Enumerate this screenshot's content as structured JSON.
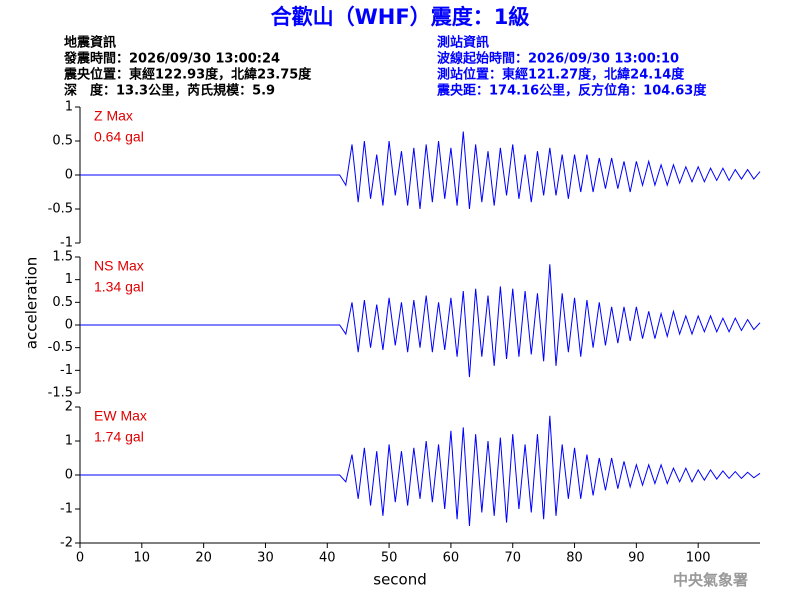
{
  "header": {
    "title": "合歡山（WHF）震度：1級",
    "left": [
      "地震資訊",
      "發震時間：2026/09/30 13:00:24",
      "震央位置：東經122.93度，北緯23.75度",
      "深　度：13.3公里，芮氏規模：5.9"
    ],
    "right": [
      "測站資訊",
      "波線起始時間：2026/09/30 13:00:10",
      "測站位置：東經121.27度，北緯24.14度",
      "震央距：174.16公里，反方位角：104.63度"
    ],
    "credit": "中央氣象署"
  },
  "chart_data": [
    {
      "type": "line",
      "label": "Z Max",
      "max_label": "0.64 gal",
      "color": "#0000ff",
      "label_color": "#e00000",
      "xlim": [
        0,
        110
      ],
      "ylim": [
        -1,
        1
      ],
      "yticks": [
        -1,
        -0.5,
        0,
        0.5,
        1
      ],
      "x": [
        0,
        42,
        43,
        44,
        45,
        46,
        47,
        48,
        49,
        50,
        51,
        52,
        53,
        54,
        55,
        56,
        57,
        58,
        59,
        60,
        61,
        62,
        63,
        64,
        65,
        66,
        67,
        68,
        69,
        70,
        71,
        72,
        73,
        74,
        75,
        76,
        77,
        78,
        79,
        80,
        81,
        82,
        83,
        84,
        85,
        86,
        87,
        88,
        89,
        90,
        91,
        92,
        93,
        94,
        95,
        96,
        97,
        98,
        99,
        100,
        101,
        102,
        103,
        104,
        105,
        106,
        107,
        108,
        109,
        110
      ],
      "values": [
        0,
        0,
        -0.15,
        0.45,
        -0.4,
        0.5,
        -0.35,
        0.3,
        -0.45,
        0.5,
        -0.3,
        0.35,
        -0.45,
        0.4,
        -0.5,
        0.45,
        -0.4,
        0.5,
        -0.35,
        0.4,
        -0.45,
        0.64,
        -0.5,
        0.45,
        -0.4,
        0.35,
        -0.45,
        0.4,
        -0.3,
        0.45,
        -0.35,
        0.3,
        -0.4,
        0.35,
        -0.3,
        0.4,
        -0.3,
        0.3,
        -0.35,
        0.3,
        -0.25,
        0.3,
        -0.25,
        0.25,
        -0.2,
        0.25,
        -0.2,
        0.2,
        -0.25,
        0.2,
        -0.15,
        0.2,
        -0.15,
        0.15,
        -0.15,
        0.15,
        -0.12,
        0.12,
        -0.1,
        0.12,
        -0.1,
        0.1,
        -0.08,
        0.1,
        -0.08,
        0.08,
        -0.06,
        0.08,
        -0.06,
        0.05
      ]
    },
    {
      "type": "line",
      "label": "NS Max",
      "max_label": "1.34 gal",
      "color": "#0000ff",
      "label_color": "#e00000",
      "ylabel": "acceleration",
      "xlim": [
        0,
        110
      ],
      "ylim": [
        -1.5,
        1.5
      ],
      "yticks": [
        -1.5,
        -1,
        -0.5,
        0,
        0.5,
        1,
        1.5
      ],
      "x": [
        0,
        42,
        43,
        44,
        45,
        46,
        47,
        48,
        49,
        50,
        51,
        52,
        53,
        54,
        55,
        56,
        57,
        58,
        59,
        60,
        61,
        62,
        63,
        64,
        65,
        66,
        67,
        68,
        69,
        70,
        71,
        72,
        73,
        74,
        75,
        76,
        77,
        78,
        79,
        80,
        81,
        82,
        83,
        84,
        85,
        86,
        87,
        88,
        89,
        90,
        91,
        92,
        93,
        94,
        95,
        96,
        97,
        98,
        99,
        100,
        101,
        102,
        103,
        104,
        105,
        106,
        107,
        108,
        109,
        110
      ],
      "values": [
        0,
        0,
        -0.2,
        0.5,
        -0.6,
        0.55,
        -0.5,
        0.45,
        -0.55,
        0.6,
        -0.45,
        0.5,
        -0.6,
        0.55,
        -0.5,
        0.65,
        -0.6,
        0.5,
        -0.55,
        0.6,
        -0.7,
        0.75,
        -1.15,
        0.8,
        -0.7,
        0.65,
        -0.9,
        0.85,
        -0.75,
        0.8,
        -0.7,
        0.75,
        -0.65,
        0.7,
        -0.8,
        1.34,
        -0.9,
        0.7,
        -0.6,
        0.6,
        -0.7,
        0.55,
        -0.5,
        0.5,
        -0.45,
        0.4,
        -0.4,
        0.4,
        -0.35,
        0.4,
        -0.3,
        0.3,
        -0.3,
        0.25,
        -0.25,
        0.3,
        -0.2,
        0.2,
        -0.2,
        0.2,
        -0.15,
        0.2,
        -0.15,
        0.15,
        -0.15,
        0.15,
        -0.12,
        0.12,
        -0.1,
        0.05
      ]
    },
    {
      "type": "line",
      "label": "EW Max",
      "max_label": "1.74 gal",
      "color": "#0000ff",
      "label_color": "#e00000",
      "xlabel": "second",
      "xlim": [
        0,
        110
      ],
      "xticks": [
        0,
        10,
        20,
        30,
        40,
        50,
        60,
        70,
        80,
        90,
        100
      ],
      "ylim": [
        -2,
        2
      ],
      "yticks": [
        -2,
        -1,
        0,
        1,
        2
      ],
      "x": [
        0,
        42,
        43,
        44,
        45,
        46,
        47,
        48,
        49,
        50,
        51,
        52,
        53,
        54,
        55,
        56,
        57,
        58,
        59,
        60,
        61,
        62,
        63,
        64,
        65,
        66,
        67,
        68,
        69,
        70,
        71,
        72,
        73,
        74,
        75,
        76,
        77,
        78,
        79,
        80,
        81,
        82,
        83,
        84,
        85,
        86,
        87,
        88,
        89,
        90,
        91,
        92,
        93,
        94,
        95,
        96,
        97,
        98,
        99,
        100,
        101,
        102,
        103,
        104,
        105,
        106,
        107,
        108,
        109,
        110
      ],
      "values": [
        0,
        0,
        -0.2,
        0.6,
        -0.7,
        0.8,
        -0.9,
        0.7,
        -1.2,
        0.9,
        -0.8,
        0.7,
        -0.9,
        0.8,
        -0.7,
        1.0,
        -0.8,
        0.9,
        -1.0,
        1.3,
        -1.3,
        1.4,
        -1.5,
        1.2,
        -1.1,
        1.0,
        -1.2,
        1.1,
        -1.4,
        1.2,
        -1.0,
        0.9,
        -1.1,
        1.2,
        -1.3,
        1.74,
        -1.2,
        0.9,
        -0.7,
        0.8,
        -0.7,
        0.6,
        -0.6,
        0.5,
        -0.45,
        0.5,
        -0.4,
        0.4,
        -0.35,
        0.3,
        -0.3,
        0.3,
        -0.25,
        0.3,
        -0.25,
        0.2,
        -0.2,
        0.2,
        -0.2,
        0.15,
        -0.15,
        0.15,
        -0.12,
        0.12,
        -0.1,
        0.1,
        -0.1,
        0.08,
        -0.08,
        0.05
      ]
    }
  ]
}
